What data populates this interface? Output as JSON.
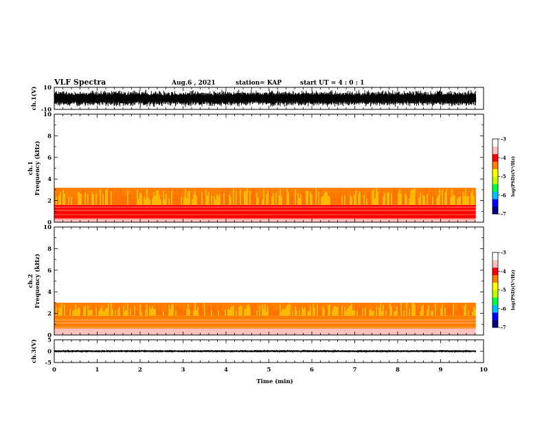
{
  "header": {
    "title": "VLF Spectra",
    "date": "Aug.6 , 2021",
    "station": "station= KAP",
    "start_ut": "start UT = 4 : 0 : 1"
  },
  "colors": {
    "background": "#ffffff",
    "axes": "#000000",
    "colormap": [
      "#000080",
      "#0000ff",
      "#00c0ff",
      "#00ff40",
      "#c0ff00",
      "#ffff00",
      "#ff8000",
      "#ff0000",
      "#ffc0c0",
      "#ffffff"
    ]
  },
  "chart_data": [
    {
      "type": "line",
      "name": "ch1-waveform",
      "ylabel": "ch.1(V)",
      "ylim": [
        -10,
        10
      ],
      "yticks": [
        {
          "v": 10,
          "label": "10"
        },
        {
          "v": -10,
          "label": "-10"
        }
      ],
      "xlim": [
        0,
        10
      ],
      "data_xrange": [
        0,
        9.82
      ],
      "amplitude_envelope": [
        -8,
        8
      ]
    },
    {
      "type": "heatmap",
      "name": "ch1-spectrogram",
      "ylabel": "ch.1\nFrequency (kHz)",
      "ylim": [
        0,
        10
      ],
      "yticks": [
        {
          "v": 0,
          "label": "0"
        },
        {
          "v": 2,
          "label": "2"
        },
        {
          "v": 4,
          "label": "4"
        },
        {
          "v": 6,
          "label": "6"
        },
        {
          "v": 8,
          "label": "8"
        },
        {
          "v": 10,
          "label": "10"
        }
      ],
      "xlim": [
        0,
        10
      ],
      "data_xrange": [
        0,
        9.82
      ],
      "colorbar": {
        "label": "log(PSD)(V²/Hz)",
        "range": [
          -7,
          -3
        ],
        "ticks": [
          {
            "v": -3,
            "label": "-3"
          },
          {
            "v": -4,
            "label": "-4"
          },
          {
            "v": -5,
            "label": "-5"
          },
          {
            "v": -6,
            "label": "-6"
          },
          {
            "v": -7,
            "label": "-7"
          }
        ]
      },
      "bands": [
        {
          "f": [
            0.0,
            0.3
          ],
          "level": -3.8
        },
        {
          "f": [
            0.3,
            1.0
          ],
          "level": -3.9
        },
        {
          "f": [
            1.0,
            1.6
          ],
          "level": -4.2
        },
        {
          "f": [
            1.6,
            3.2
          ],
          "level": -4.4
        },
        {
          "f": [
            3.2,
            10.0
          ],
          "level": -3.2
        }
      ]
    },
    {
      "type": "heatmap",
      "name": "ch2-spectrogram",
      "ylabel": "ch.2\nFrequency (kHz)",
      "ylim": [
        0,
        10
      ],
      "yticks": [
        {
          "v": 0,
          "label": "0"
        },
        {
          "v": 2,
          "label": "2"
        },
        {
          "v": 4,
          "label": "4"
        },
        {
          "v": 6,
          "label": "6"
        },
        {
          "v": 8,
          "label": "8"
        },
        {
          "v": 10,
          "label": "10"
        }
      ],
      "xlim": [
        0,
        10
      ],
      "data_xrange": [
        0,
        9.82
      ],
      "colorbar": {
        "label": "log(PSD)(V²/Hz)",
        "range": [
          -7,
          -3
        ],
        "ticks": [
          {
            "v": -3,
            "label": "-3"
          },
          {
            "v": -4,
            "label": "-4"
          },
          {
            "v": -5,
            "label": "-5"
          },
          {
            "v": -6,
            "label": "-6"
          },
          {
            "v": -7,
            "label": "-7"
          }
        ]
      },
      "bands": [
        {
          "f": [
            0.0,
            0.6
          ],
          "level": -3.8
        },
        {
          "f": [
            0.6,
            1.8
          ],
          "level": -4.6
        },
        {
          "f": [
            1.8,
            3.0
          ],
          "level": -4.3
        },
        {
          "f": [
            3.0,
            10.0
          ],
          "level": -3.2
        }
      ]
    },
    {
      "type": "line",
      "name": "ch3-waveform",
      "ylabel": "ch.3(V)",
      "ylim": [
        -5,
        5
      ],
      "yticks": [
        {
          "v": 5,
          "label": "5"
        },
        {
          "v": 0,
          "label": "0"
        },
        {
          "v": -5,
          "label": "-5"
        }
      ],
      "xlim": [
        0,
        10
      ],
      "data_xrange": [
        0,
        9.82
      ],
      "amplitude_envelope": [
        -0.6,
        0.6
      ],
      "xlabel": "Time (min)",
      "xticks": [
        {
          "v": 0,
          "label": "0"
        },
        {
          "v": 1,
          "label": "1"
        },
        {
          "v": 2,
          "label": "2"
        },
        {
          "v": 3,
          "label": "3"
        },
        {
          "v": 4,
          "label": "4"
        },
        {
          "v": 5,
          "label": "5"
        },
        {
          "v": 6,
          "label": "6"
        },
        {
          "v": 7,
          "label": "7"
        },
        {
          "v": 8,
          "label": "8"
        },
        {
          "v": 9,
          "label": "9"
        },
        {
          "v": 10,
          "label": "10"
        }
      ]
    }
  ]
}
